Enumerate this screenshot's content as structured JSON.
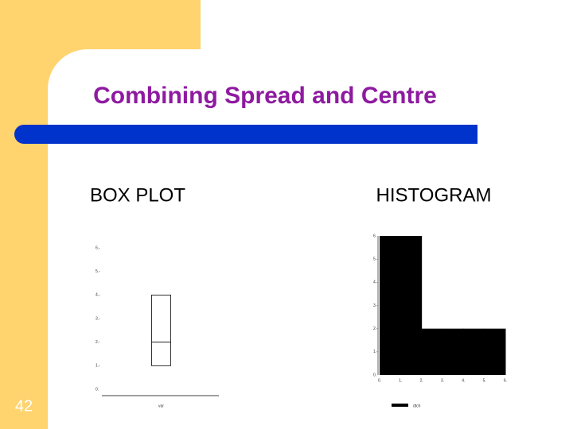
{
  "slide": {
    "title": "Combining Spread and Centre",
    "number": "42"
  },
  "chart_data": [
    {
      "type": "box",
      "title": "BOX PLOT",
      "categories": [
        "var"
      ],
      "q1": [
        1
      ],
      "median": [
        2
      ],
      "q3": [
        4
      ],
      "color": "#ffffff",
      "ylim": [
        0,
        6
      ],
      "yticks": [
        {
          "value": 0,
          "label": "0."
        },
        {
          "value": 1,
          "label": "1.-"
        },
        {
          "value": 2,
          "label": "2.-"
        },
        {
          "value": 3,
          "label": "3.-"
        },
        {
          "value": 4,
          "label": "4.-"
        },
        {
          "value": 5,
          "label": "5.-"
        },
        {
          "value": 6,
          "label": "6.-"
        }
      ]
    },
    {
      "type": "histogram",
      "title": "HISTOGRAM",
      "bins": [
        0,
        1,
        2,
        3,
        4,
        5,
        6
      ],
      "values": [
        6,
        6,
        2,
        2,
        2,
        2
      ],
      "color": "#000000",
      "series_name": "dtch",
      "xlim": [
        0,
        6
      ],
      "ylim": [
        0,
        6
      ],
      "xticks": [
        {
          "value": 0,
          "label": "0."
        },
        {
          "value": 1,
          "label": "1."
        },
        {
          "value": 2,
          "label": "2."
        },
        {
          "value": 3,
          "label": "3."
        },
        {
          "value": 4,
          "label": "4."
        },
        {
          "value": 5,
          "label": "5."
        },
        {
          "value": 6,
          "label": "6."
        }
      ],
      "yticks": [
        {
          "value": 0,
          "label": "0."
        },
        {
          "value": 1,
          "label": "1.-"
        },
        {
          "value": 2,
          "label": "2.-"
        },
        {
          "value": 3,
          "label": "3.-"
        },
        {
          "value": 4,
          "label": "4.-"
        },
        {
          "value": 5,
          "label": "5.-"
        },
        {
          "value": 6,
          "label": "6."
        }
      ]
    }
  ]
}
